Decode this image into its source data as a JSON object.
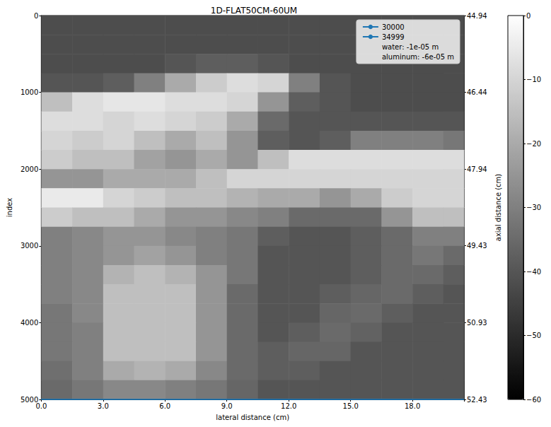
{
  "chart_data": {
    "type": "heatmap",
    "title": "1D-FLAT50CM-60UM",
    "x_label": "lateral distance (cm)",
    "y_label": "index",
    "y2_label": "axial distance (cm)",
    "xlim": [
      0,
      20.5
    ],
    "xticks": [
      {
        "value": 0,
        "label": "0.0"
      },
      {
        "value": 3,
        "label": "3.0"
      },
      {
        "value": 6,
        "label": "6.0"
      },
      {
        "value": 9,
        "label": "9.0"
      },
      {
        "value": 12,
        "label": "12.0"
      },
      {
        "value": 15,
        "label": "15.0"
      },
      {
        "value": 18,
        "label": "18.0"
      }
    ],
    "ylim": [
      0,
      5000
    ],
    "yticks": [
      0,
      1000,
      2000,
      3000,
      4000,
      5000
    ],
    "y2lim": [
      44.94,
      52.43
    ],
    "y2ticks": [
      44.94,
      46.44,
      47.94,
      49.43,
      50.93,
      52.43
    ],
    "x_edges": [
      0,
      1.5,
      3,
      4.5,
      6,
      7.5,
      9,
      10.5,
      12,
      13.5,
      15,
      16.5,
      18,
      19.5,
      20.5
    ],
    "y_edges": [
      0,
      250,
      500,
      750,
      1000,
      1250,
      1500,
      1750,
      2000,
      2250,
      2500,
      2750,
      3000,
      3250,
      3500,
      3750,
      4000,
      4250,
      4500,
      4750,
      5000
    ],
    "cells": [
      [
        -42,
        -42,
        -42,
        -42,
        -42,
        -42,
        -42,
        -42,
        -42,
        -42,
        -42,
        -42,
        -42,
        -42
      ],
      [
        -42,
        -42,
        -42,
        -42,
        -42,
        -42,
        -42,
        -42,
        -42,
        -42,
        -42,
        -42,
        -42,
        -42
      ],
      [
        -42,
        -42,
        -42,
        -42,
        -40,
        -38,
        -38,
        -40,
        -42,
        -42,
        -42,
        -42,
        -42,
        -42
      ],
      [
        -40,
        -40,
        -38,
        -30,
        -20,
        -12,
        -8,
        -10,
        -30,
        -40,
        -42,
        -42,
        -42,
        -42
      ],
      [
        -15,
        -8,
        -6,
        -6,
        -8,
        -8,
        -10,
        -25,
        -38,
        -40,
        -42,
        -42,
        -42,
        -42
      ],
      [
        -8,
        -8,
        -10,
        -8,
        -10,
        -12,
        -20,
        -35,
        -40,
        -40,
        -40,
        -40,
        -40,
        -40
      ],
      [
        -10,
        -12,
        -10,
        -15,
        -20,
        -15,
        -25,
        -38,
        -40,
        -38,
        -30,
        -30,
        -30,
        -32
      ],
      [
        -12,
        -15,
        -15,
        -22,
        -25,
        -20,
        -25,
        -15,
        -8,
        -8,
        -8,
        -8,
        -8,
        -8
      ],
      [
        -25,
        -25,
        -20,
        -20,
        -20,
        -15,
        -10,
        -10,
        -10,
        -10,
        -10,
        -10,
        -10,
        -10
      ],
      [
        -5,
        -5,
        -10,
        -12,
        -15,
        -15,
        -18,
        -20,
        -20,
        -25,
        -20,
        -12,
        -10,
        -10
      ],
      [
        -12,
        -15,
        -15,
        -20,
        -25,
        -25,
        -28,
        -30,
        -35,
        -35,
        -35,
        -25,
        -15,
        -15
      ],
      [
        -30,
        -28,
        -25,
        -25,
        -28,
        -30,
        -32,
        -38,
        -40,
        -40,
        -38,
        -35,
        -30,
        -30
      ],
      [
        -30,
        -28,
        -25,
        -22,
        -25,
        -30,
        -32,
        -40,
        -40,
        -40,
        -38,
        -35,
        -32,
        -35
      ],
      [
        -30,
        -28,
        -18,
        -15,
        -18,
        -25,
        -32,
        -40,
        -40,
        -40,
        -38,
        -35,
        -35,
        -38
      ],
      [
        -30,
        -28,
        -15,
        -15,
        -15,
        -25,
        -35,
        -40,
        -40,
        -38,
        -36,
        -35,
        -38,
        -40
      ],
      [
        -32,
        -28,
        -15,
        -15,
        -15,
        -25,
        -35,
        -40,
        -40,
        -36,
        -35,
        -38,
        -40,
        -40
      ],
      [
        -32,
        -30,
        -15,
        -15,
        -15,
        -25,
        -35,
        -40,
        -38,
        -35,
        -37,
        -40,
        -40,
        -40
      ],
      [
        -32,
        -30,
        -15,
        -15,
        -15,
        -25,
        -35,
        -38,
        -36,
        -36,
        -40,
        -40,
        -40,
        -40
      ],
      [
        -34,
        -30,
        -20,
        -18,
        -20,
        -28,
        -35,
        -38,
        -38,
        -40,
        -40,
        -40,
        -40,
        -40
      ],
      [
        -35,
        -32,
        -28,
        -28,
        -30,
        -32,
        -36,
        -40,
        -40,
        -40,
        -40,
        -40,
        -40,
        -40
      ]
    ],
    "colorbar": {
      "range": [
        -60,
        0
      ],
      "ticks": [
        {
          "value": 0,
          "label": "0"
        },
        {
          "value": -10,
          "label": "−10"
        },
        {
          "value": -20,
          "label": "−20"
        },
        {
          "value": -30,
          "label": "−30"
        },
        {
          "value": -40,
          "label": "−40"
        },
        {
          "value": -50,
          "label": "−50"
        },
        {
          "value": -60,
          "label": "−60"
        }
      ]
    },
    "series": [
      {
        "name": "30000",
        "type": "line",
        "color": "#1f77b4",
        "x": [
          0,
          20.5
        ],
        "values": [
          5000,
          5000
        ]
      },
      {
        "name": "34999",
        "type": "line",
        "color": "#1f77b4",
        "x": [
          0,
          20.5
        ],
        "values": [
          5000,
          5000
        ]
      },
      {
        "name": "water: -1e-05 m"
      },
      {
        "name": "aluminum: -6e-05 m"
      }
    ],
    "legend": "upper right"
  }
}
